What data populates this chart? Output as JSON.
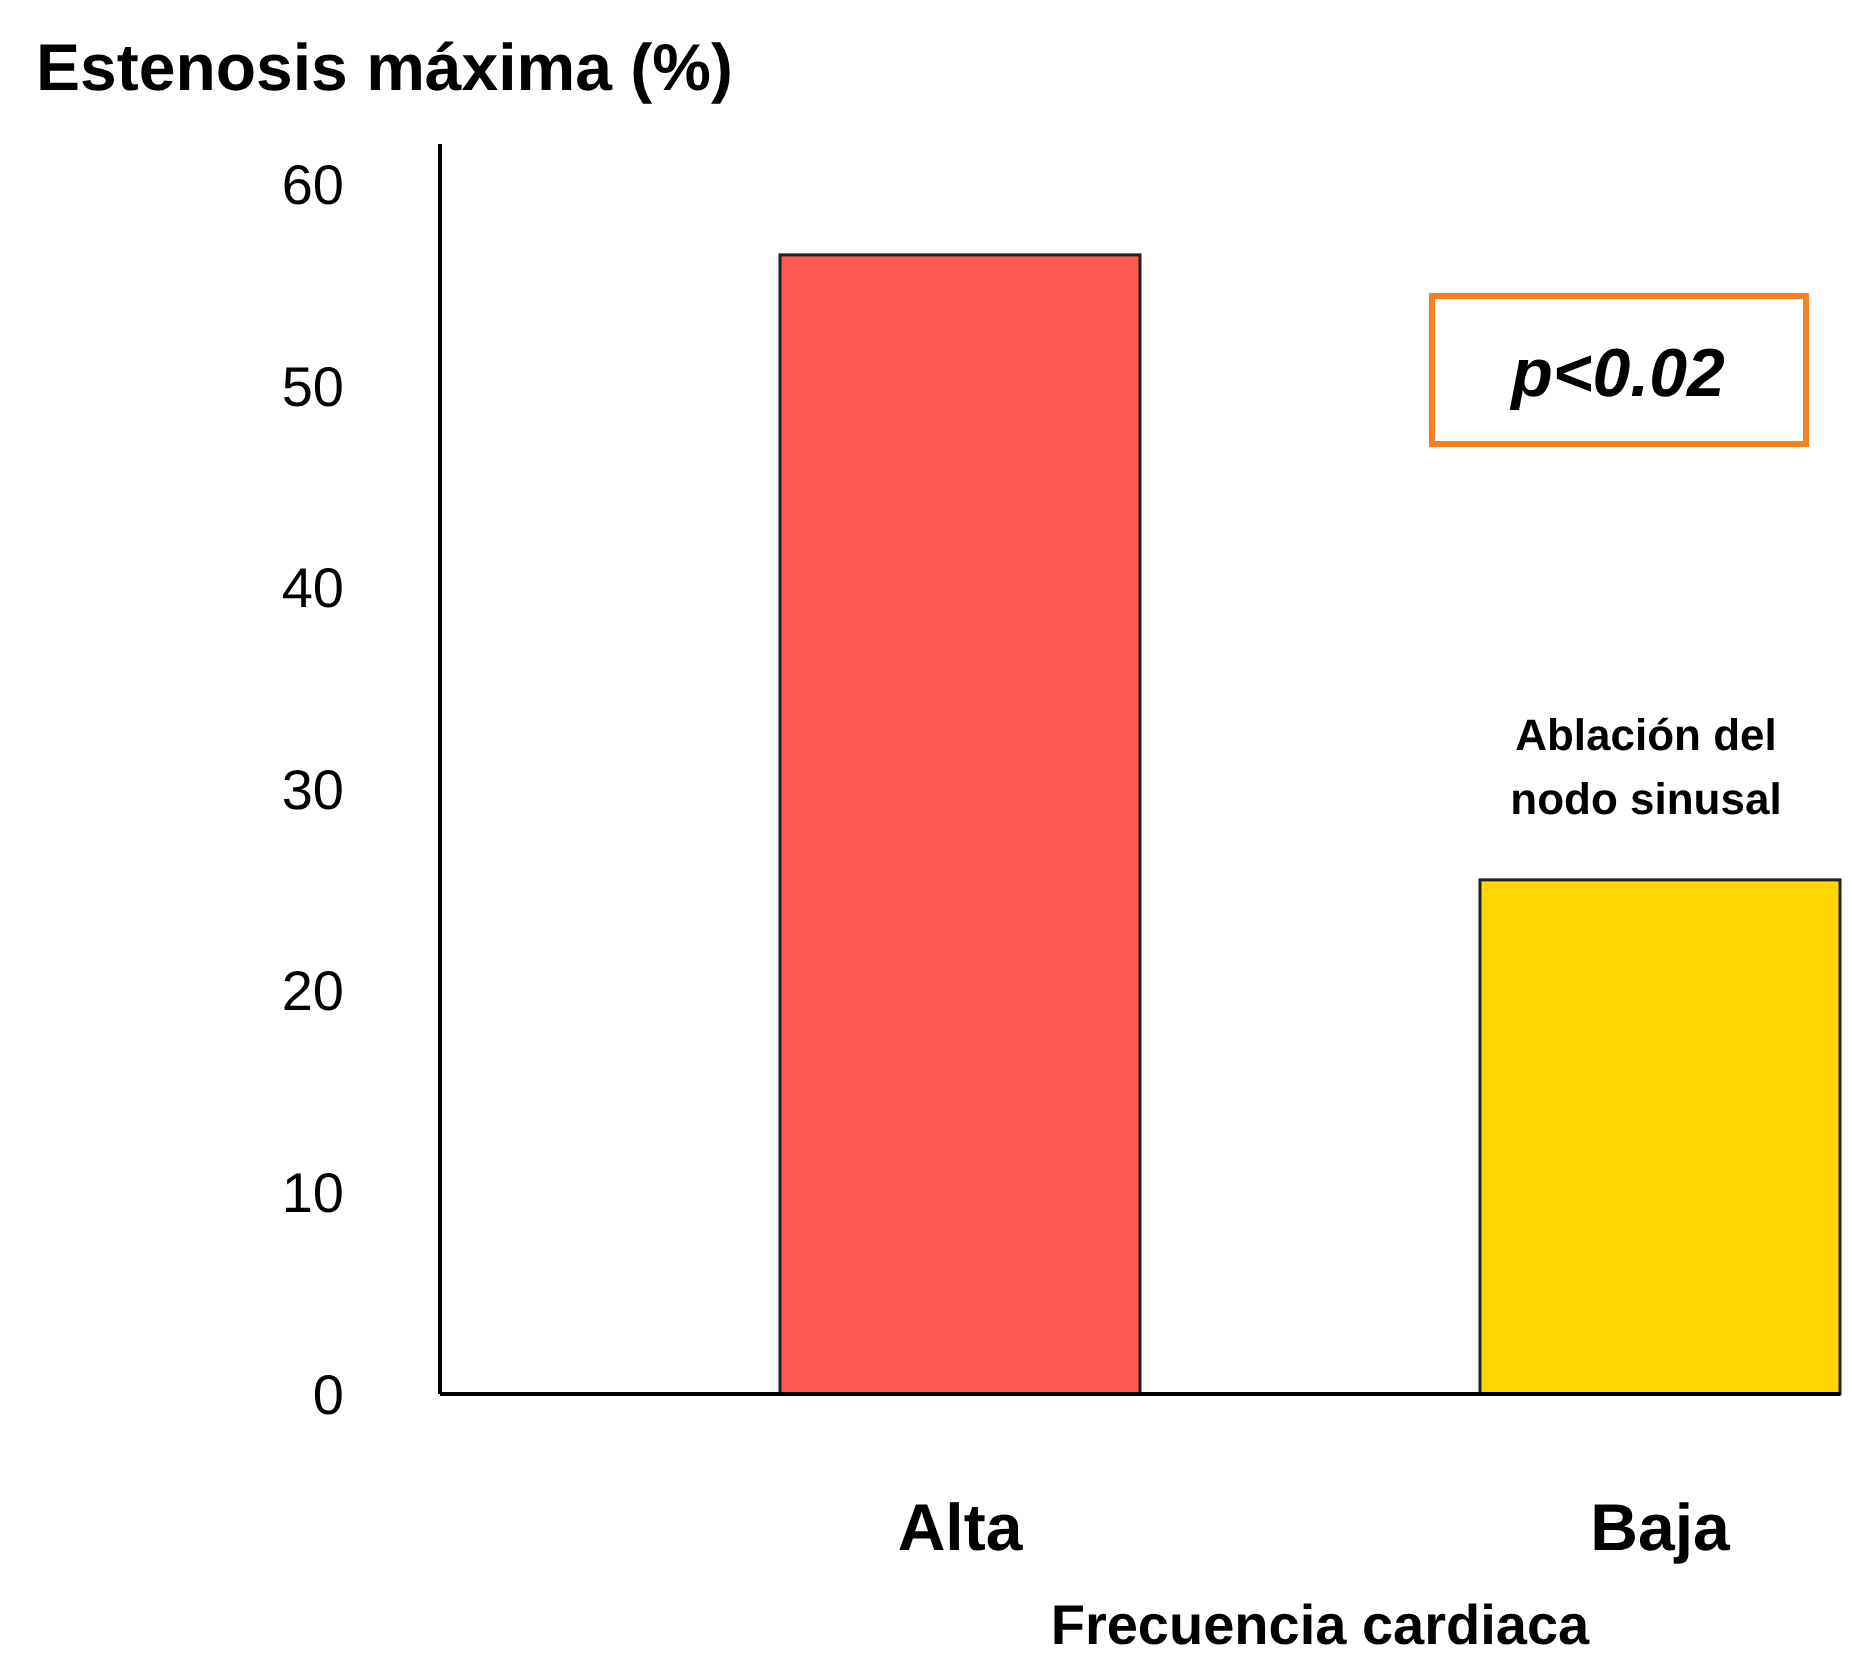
{
  "chart_data": {
    "type": "bar",
    "title": "Estenosis máxima (%)",
    "xlabel": "Frecuencia cardiaca",
    "categories": [
      "Alta",
      "Baja"
    ],
    "values": [
      56.5,
      25.5
    ],
    "colors": [
      "#ff5a52",
      "#ffd500"
    ],
    "ylim": [
      0,
      62
    ],
    "yticks": [
      0,
      10,
      20,
      30,
      40,
      50,
      60
    ],
    "grid": false,
    "annotations": [
      "p<0.02",
      {
        "text": "Ablación del nodo sinusal",
        "x": "Baja",
        "y": 25.5
      }
    ]
  }
}
